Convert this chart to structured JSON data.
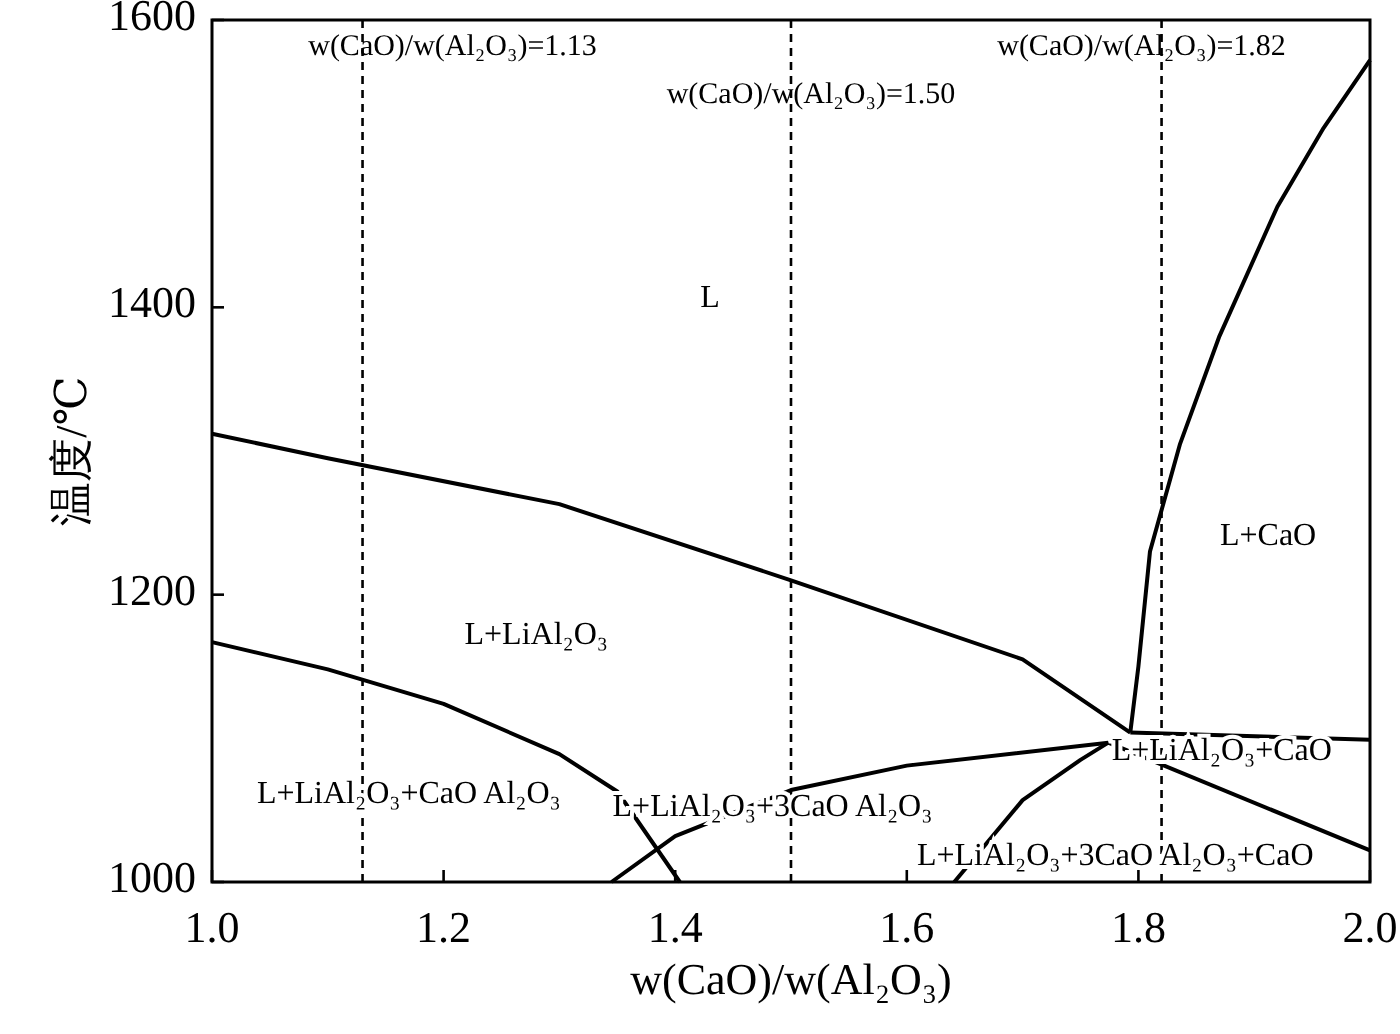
{
  "chart_data": {
    "type": "line",
    "xlabel": "w(CaO)/w(Al₂O₃)",
    "ylabel": "温度/℃",
    "xlim": [
      1.0,
      2.0
    ],
    "ylim": [
      1000,
      1600
    ],
    "xticks": [
      {
        "value": 1.0,
        "label": "1.0"
      },
      {
        "value": 1.2,
        "label": "1.2"
      },
      {
        "value": 1.4,
        "label": "1.4"
      },
      {
        "value": 1.6,
        "label": "1.6"
      },
      {
        "value": 1.8,
        "label": "1.8"
      },
      {
        "value": 2.0,
        "label": "2.0"
      }
    ],
    "yticks": [
      1000,
      1200,
      1400,
      1600
    ],
    "grid": false,
    "marker": "none",
    "line_style": "solid",
    "series": [
      {
        "color": "#000000",
        "x": [
          1.0,
          1.1,
          1.3,
          1.5,
          1.7,
          1.793
        ],
        "values": [
          1312,
          1295,
          1263,
          1210,
          1155,
          1104
        ]
      },
      {
        "color": "#000000",
        "x": [
          1.793,
          1.8,
          1.81,
          1.836,
          1.87,
          1.92,
          1.96,
          2.0
        ],
        "values": [
          1104,
          1150,
          1230,
          1305,
          1380,
          1470,
          1525,
          1572
        ]
      },
      {
        "color": "#000000",
        "x": [
          1.793,
          2.0
        ],
        "values": [
          1104,
          1099
        ]
      },
      {
        "color": "#000000",
        "x": [
          1.0,
          1.1,
          1.2,
          1.3,
          1.35,
          1.404
        ],
        "values": [
          1167,
          1148,
          1124,
          1089,
          1063,
          1000
        ]
      },
      {
        "color": "#000000",
        "x": [
          1.345,
          1.4,
          1.5,
          1.6,
          1.774
        ],
        "values": [
          1000,
          1032,
          1064,
          1081,
          1097
        ]
      },
      {
        "color": "#000000",
        "x": [
          1.641,
          1.7,
          1.75,
          1.774
        ],
        "values": [
          1000,
          1057,
          1085,
          1097
        ]
      },
      {
        "color": "#000000",
        "x": [
          1.774,
          2.0
        ],
        "values": [
          1097,
          1022
        ]
      }
    ],
    "ref_lines": [
      {
        "axis": "x",
        "value": 1.13,
        "label": "w(CaO)/w(Al₂O₃)=1.13",
        "line_style": "dashed",
        "color": "#000000"
      },
      {
        "axis": "x",
        "value": 1.5,
        "label": "w(CaO)/w(Al₂O₃)=1.50",
        "line_style": "dashed",
        "color": "#000000"
      },
      {
        "axis": "x",
        "value": 1.82,
        "label": "w(CaO)/w(Al₂O₃)=1.82",
        "line_style": "dashed",
        "color": "#000000"
      }
    ],
    "annotations": [
      "L",
      "L+CaO",
      "L+LiAl₂O₃",
      "L+LiAl₂O₃+CaO Al₂O₃",
      "L+LiAl₂O₃+3CaO Al₂O₃",
      "L+LiAl₂O₃+CaO",
      "L+LiAl₂O₃+3CaO Al₂O₃+CaO"
    ]
  }
}
